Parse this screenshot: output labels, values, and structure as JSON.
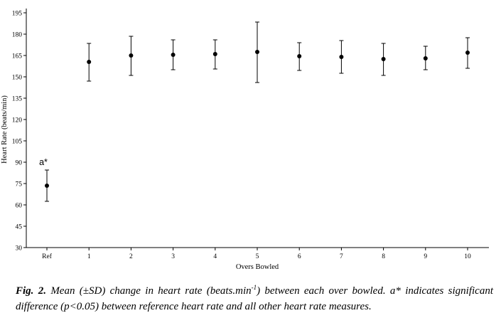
{
  "chart_data": {
    "type": "scatter",
    "xlabel": "Overs Bowled",
    "ylabel": "Heart Rate (beats/min)",
    "ylim": [
      30,
      195
    ],
    "yticks": [
      30,
      45,
      60,
      75,
      90,
      105,
      120,
      135,
      150,
      165,
      180,
      195
    ],
    "categories": [
      "Ref",
      "1",
      "2",
      "3",
      "4",
      "5",
      "6",
      "7",
      "8",
      "9",
      "10"
    ],
    "values": [
      73.5,
      160.5,
      165.0,
      165.5,
      166.0,
      167.5,
      164.5,
      164.0,
      162.5,
      163.0,
      167.0
    ],
    "error_upper": [
      84.5,
      173.5,
      178.5,
      176.0,
      176.0,
      188.5,
      174.0,
      175.5,
      173.5,
      171.5,
      177.5
    ],
    "error_lower": [
      62.5,
      147.0,
      151.0,
      155.0,
      155.5,
      146.0,
      154.5,
      152.5,
      151.0,
      155.0,
      156.0
    ],
    "annotations": [
      {
        "category": "Ref",
        "text": "a*"
      }
    ],
    "grid": false,
    "legend": "none"
  },
  "caption": {
    "label": "Fig. 2.",
    "text_before_sup": " Mean (±SD) change in heart rate (beats.min",
    "sup": "-1",
    "text_after_sup": ") between each over bowled. a* indicates significant difference (p<0.05) between reference heart rate and all other heart rate measures."
  }
}
